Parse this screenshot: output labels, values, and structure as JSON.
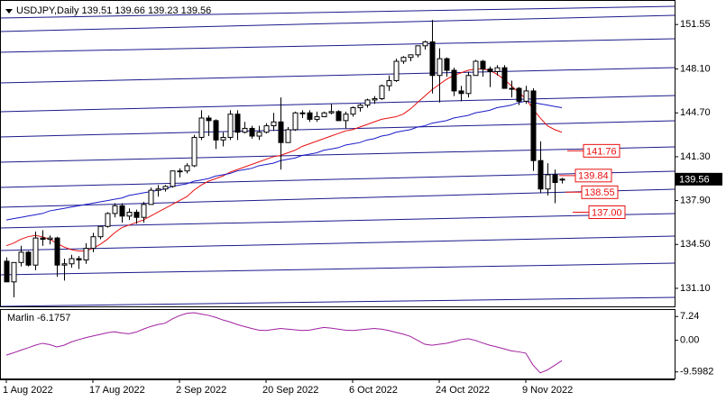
{
  "chart_data": [
    {
      "type": "candlestick",
      "title": "USDJPY,Daily  139.51 139.66 139.23 139.56",
      "categories": [
        "1 Aug 2022",
        null,
        null,
        null,
        null,
        null,
        null,
        null,
        null,
        null,
        null,
        null,
        "17 Aug 2022",
        null,
        null,
        null,
        null,
        null,
        null,
        null,
        null,
        null,
        null,
        null,
        "2 Sep 2022",
        null,
        null,
        null,
        null,
        null,
        null,
        null,
        null,
        null,
        null,
        null,
        "20 Sep 2022",
        null,
        null,
        null,
        null,
        null,
        null,
        null,
        null,
        null,
        null,
        null,
        "6 Oct 2022",
        null,
        null,
        null,
        null,
        null,
        null,
        null,
        null,
        null,
        null,
        null,
        "24 Oct 2022",
        null,
        null,
        null,
        null,
        null,
        null,
        null,
        null,
        null,
        null,
        null,
        "9 Nov 2022",
        null,
        null,
        null,
        null,
        null
      ],
      "open": [
        133.2,
        131.6,
        133.1,
        133.9,
        132.9,
        135.0,
        134.9,
        135.0,
        132.9,
        133.0,
        133.4,
        133.3,
        134.2,
        135.1,
        135.9,
        136.9,
        137.5,
        136.7,
        137.0,
        136.6,
        137.6,
        138.7,
        138.8,
        139.0,
        140.2,
        140.2,
        140.6,
        142.8,
        144.3,
        144.1,
        142.6,
        142.8,
        144.6,
        143.2,
        143.5,
        142.9,
        143.2,
        143.7,
        144.0,
        142.4,
        143.4,
        144.7,
        144.7,
        144.2,
        144.4,
        144.7,
        144.8,
        144.1,
        144.6,
        145.1,
        145.3,
        145.7,
        145.8,
        146.8,
        147.2,
        148.7,
        149.0,
        149.2,
        149.9,
        150.2,
        147.6,
        148.9,
        148.0,
        146.4,
        146.2,
        147.6,
        148.7,
        148.1,
        147.9,
        148.2,
        146.6,
        146.6,
        145.6,
        146.4,
        141.0,
        138.8,
        139.9,
        139.51
      ],
      "high": [
        133.5,
        133.1,
        134.4,
        134.0,
        135.5,
        135.6,
        135.2,
        135.1,
        133.4,
        133.7,
        133.6,
        134.6,
        135.4,
        135.9,
        137.0,
        137.7,
        137.7,
        137.3,
        137.2,
        137.8,
        138.9,
        139.1,
        139.1,
        140.2,
        140.4,
        140.8,
        143.0,
        144.9,
        144.5,
        144.2,
        143.2,
        144.9,
        144.9,
        144.0,
        143.7,
        143.7,
        143.9,
        144.7,
        145.9,
        143.6,
        144.8,
        144.9,
        144.9,
        144.8,
        144.8,
        145.4,
        144.9,
        144.8,
        145.2,
        145.4,
        145.8,
        146.0,
        146.9,
        147.6,
        148.9,
        149.1,
        149.2,
        149.9,
        150.3,
        151.9,
        149.7,
        149.0,
        148.2,
        146.8,
        147.9,
        148.8,
        148.8,
        148.3,
        148.4,
        148.4,
        147.2,
        146.7,
        146.8,
        146.6,
        142.5,
        140.8,
        140.3,
        139.66
      ],
      "low": [
        131.6,
        130.4,
        132.8,
        132.8,
        132.5,
        134.4,
        134.5,
        132.0,
        131.7,
        132.7,
        132.6,
        133.0,
        133.9,
        134.9,
        135.8,
        136.6,
        136.2,
        136.4,
        136.1,
        136.2,
        137.6,
        138.2,
        138.6,
        138.9,
        139.7,
        140.0,
        140.5,
        142.6,
        142.9,
        141.9,
        142.1,
        142.6,
        142.6,
        143.1,
        142.7,
        142.6,
        143.1,
        143.3,
        140.3,
        142.4,
        143.3,
        144.3,
        144.0,
        144.0,
        144.4,
        144.6,
        144.2,
        143.5,
        144.4,
        144.8,
        145.1,
        145.4,
        145.7,
        146.4,
        147.1,
        148.5,
        148.7,
        149.0,
        149.6,
        146.2,
        145.5,
        147.5,
        146.0,
        145.6,
        145.9,
        147.6,
        147.5,
        146.7,
        147.6,
        146.6,
        145.9,
        145.3,
        145.4,
        140.2,
        138.5,
        138.3,
        137.7,
        139.23
      ],
      "close": [
        131.6,
        133.1,
        133.9,
        132.9,
        135.0,
        134.9,
        135.0,
        132.9,
        133.0,
        133.4,
        133.3,
        134.2,
        135.1,
        135.9,
        136.9,
        137.5,
        136.7,
        137.0,
        136.6,
        137.6,
        138.7,
        138.8,
        139.0,
        140.2,
        140.2,
        140.6,
        142.8,
        144.3,
        144.1,
        142.6,
        142.8,
        144.6,
        143.2,
        143.5,
        142.9,
        143.2,
        143.7,
        144.0,
        142.4,
        143.4,
        144.7,
        144.7,
        144.2,
        144.4,
        144.7,
        144.8,
        144.1,
        144.6,
        145.1,
        145.3,
        145.7,
        145.8,
        146.8,
        147.2,
        148.7,
        149.0,
        149.2,
        149.9,
        150.2,
        147.6,
        148.9,
        148.0,
        146.4,
        146.2,
        147.6,
        148.7,
        148.1,
        147.9,
        148.2,
        146.6,
        146.6,
        145.6,
        146.4,
        141.0,
        138.8,
        139.9,
        139.3,
        139.56
      ],
      "up_color": "#ffffff",
      "down_color": "#000000",
      "series": [
        {
          "color": "#e81010",
          "values": [
            134.4,
            134.6,
            134.9,
            135.1,
            135.2,
            135.1,
            134.9,
            134.6,
            134.3,
            134.1,
            134.0,
            134.0,
            134.2,
            134.5,
            134.9,
            135.4,
            135.8,
            136.0,
            136.2,
            136.4,
            136.7,
            137.0,
            137.3,
            137.6,
            137.9,
            138.2,
            138.7,
            139.1,
            139.4,
            139.6,
            139.8,
            140.1,
            140.3,
            140.5,
            140.7,
            140.9,
            141.1,
            141.3,
            141.4,
            141.6,
            141.8,
            142.1,
            142.3,
            142.5,
            142.7,
            142.9,
            143.1,
            143.3,
            143.4,
            143.6,
            143.8,
            144.0,
            144.2,
            144.3,
            144.4,
            144.6,
            145.0,
            145.5,
            146.0,
            146.5,
            146.9,
            147.3,
            147.6,
            147.8,
            148.0,
            148.1,
            148.1,
            148.0,
            147.7,
            147.3,
            146.8,
            146.3,
            145.8,
            145.0,
            144.3,
            143.7,
            143.4,
            143.2
          ]
        },
        {
          "color": "#1a1ac8",
          "values": [
            136.4,
            136.5,
            136.6,
            136.7,
            136.8,
            136.9,
            137.1,
            137.2,
            137.3,
            137.4,
            137.5,
            137.6,
            137.7,
            137.8,
            137.9,
            138.0,
            138.1,
            138.3,
            138.4,
            138.5,
            138.6,
            138.7,
            138.8,
            139.0,
            139.1,
            139.2,
            139.4,
            139.5,
            139.6,
            139.8,
            139.9,
            140.0,
            140.2,
            140.3,
            140.4,
            140.6,
            140.7,
            140.8,
            141.0,
            141.1,
            141.2,
            141.4,
            141.5,
            141.6,
            141.8,
            141.9,
            142.0,
            142.2,
            142.3,
            142.4,
            142.6,
            142.7,
            142.9,
            143.0,
            143.2,
            143.3,
            143.4,
            143.6,
            143.7,
            143.9,
            144.0,
            144.1,
            144.3,
            144.4,
            144.5,
            144.7,
            144.8,
            144.9,
            145.1,
            145.2,
            145.3,
            145.5,
            145.6,
            145.5,
            145.4,
            145.3,
            145.2,
            145.1
          ]
        }
      ],
      "levels": [
        141.76,
        139.84,
        138.55,
        {
          "value": 137,
          "label": "137.00"
        }
      ],
      "level_color": "#e81010",
      "last_price": 139.56,
      "ylim": [
        129.7,
        153.1
      ],
      "yticks": [
        151.55,
        {
          "value": 148.1,
          "label": "148.10"
        },
        {
          "value": 144.7,
          "label": "144.70"
        },
        {
          "value": 141.3,
          "label": "141.30"
        },
        {
          "value": 137.9,
          "label": "137.90"
        },
        {
          "value": 134.5,
          "label": "134.50"
        },
        {
          "value": 131.1,
          "label": "131.10"
        }
      ],
      "grid": false
    },
    {
      "type": "line",
      "title": "Marlin -6.1757",
      "color": "#a020a0",
      "values": [
        -4.5,
        -3.8,
        -3.0,
        -2.3,
        -1.5,
        -0.9,
        -1.3,
        -2.0,
        -1.5,
        -0.5,
        0.2,
        0.8,
        1.3,
        1.8,
        2.3,
        2.6,
        2.2,
        2.0,
        2.5,
        3.4,
        4.2,
        4.8,
        5.2,
        6.5,
        7.5,
        8.2,
        8.4,
        8.0,
        7.6,
        7.0,
        6.2,
        5.6,
        4.8,
        4.2,
        3.6,
        3.1,
        3.0,
        3.3,
        3.6,
        3.4,
        3.2,
        3.0,
        3.1,
        3.5,
        3.9,
        3.7,
        3.4,
        3.1,
        3.0,
        3.2,
        3.4,
        3.6,
        3.4,
        3.0,
        2.4,
        1.9,
        1.2,
        0.0,
        -1.2,
        -1.5,
        -1.2,
        -0.9,
        -0.4,
        0.2,
        0.5,
        0.0,
        -0.8,
        -1.5,
        -2.0,
        -2.6,
        -3.2,
        -3.5,
        -3.9,
        -7.5,
        -9.9,
        -9.0,
        -7.6,
        -6.1757
      ],
      "ylim": [
        -11.6,
        9.5
      ],
      "yticks": [
        7.24,
        {
          "value": 0,
          "label": "0.00"
        },
        -9.5982
      ],
      "grid": false
    }
  ]
}
